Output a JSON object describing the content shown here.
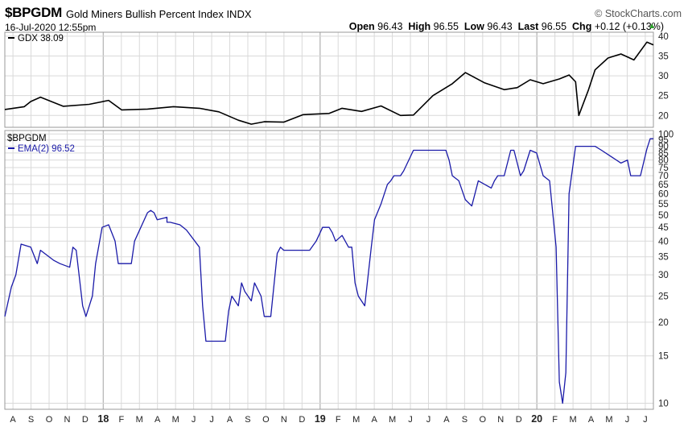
{
  "header": {
    "symbol": "$BPGDM",
    "name": "Gold Miners Bullish Percent Index",
    "exchange": "INDX",
    "brand": "© StockCharts.com",
    "date": "16-Jul-2020 12:55pm",
    "open_label": "Open",
    "open": "96.43",
    "high_label": "High",
    "high": "96.55",
    "low_label": "Low",
    "low": "96.43",
    "last_label": "Last",
    "last": "96.55",
    "chg_label": "Chg",
    "chg": "+0.12 (+0.13%)",
    "chg_arrow": "▲"
  },
  "colors": {
    "gdx_line": "#000000",
    "bpgdm_line": "#1a1aa8",
    "grid": "#d9d9d9",
    "axis": "#999999",
    "up": "#2aa02a"
  },
  "chart_data": [
    {
      "type": "line",
      "panel": "top",
      "legend": "GDX 38.09",
      "y_ticks": [
        20,
        25,
        30,
        35,
        40
      ],
      "ylim": [
        17,
        41
      ],
      "scale": "linear",
      "series": [
        {
          "name": "GDX",
          "x": [
            0,
            0.03,
            0.04,
            0.055,
            0.09,
            0.13,
            0.16,
            0.18,
            0.22,
            0.26,
            0.3,
            0.33,
            0.36,
            0.38,
            0.4,
            0.43,
            0.46,
            0.5,
            0.52,
            0.55,
            0.58,
            0.61,
            0.63,
            0.66,
            0.69,
            0.71,
            0.74,
            0.77,
            0.79,
            0.81,
            0.83,
            0.855,
            0.87,
            0.88,
            0.885,
            0.9,
            0.91,
            0.93,
            0.95,
            0.97,
            0.99,
            1.0
          ],
          "values": [
            21.5,
            22.2,
            23.5,
            24.6,
            22.3,
            22.8,
            23.8,
            21.4,
            21.6,
            22.2,
            21.8,
            20.9,
            18.8,
            17.8,
            18.4,
            18.3,
            20.2,
            20.5,
            21.8,
            21.0,
            22.4,
            20.0,
            20.1,
            25.0,
            28.0,
            30.8,
            28.2,
            26.5,
            27.0,
            29.0,
            28.0,
            29.2,
            30.2,
            28.5,
            20.0,
            26.5,
            31.5,
            34.5,
            35.5,
            34.0,
            38.5,
            37.8
          ]
        }
      ]
    },
    {
      "type": "line",
      "panel": "bottom",
      "title": "$BPGDM",
      "legend": "EMA(2) 96.52",
      "scale": "log",
      "y_ticks": [
        10,
        15,
        20,
        25,
        30,
        35,
        40,
        45,
        50,
        55,
        60,
        65,
        70,
        75,
        80,
        85,
        90,
        95,
        100
      ],
      "ylim": [
        9.5,
        103
      ],
      "x_labels": [
        "A",
        "S",
        "O",
        "N",
        "D",
        "18",
        "F",
        "M",
        "A",
        "M",
        "J",
        "J",
        "A",
        "S",
        "O",
        "N",
        "D",
        "19",
        "F",
        "M",
        "A",
        "M",
        "J",
        "J",
        "A",
        "S",
        "O",
        "N",
        "D",
        "20",
        "F",
        "M",
        "A",
        "M",
        "J",
        "J"
      ],
      "series": [
        {
          "name": "EMA(2)",
          "x": [
            0,
            0.01,
            0.017,
            0.025,
            0.04,
            0.05,
            0.055,
            0.075,
            0.085,
            0.1,
            0.105,
            0.11,
            0.12,
            0.125,
            0.135,
            0.14,
            0.15,
            0.16,
            0.17,
            0.175,
            0.185,
            0.195,
            0.2,
            0.22,
            0.225,
            0.23,
            0.235,
            0.25,
            0.25,
            0.255,
            0.27,
            0.28,
            0.3,
            0.305,
            0.31,
            0.315,
            0.32,
            0.33,
            0.34,
            0.345,
            0.35,
            0.36,
            0.365,
            0.37,
            0.38,
            0.385,
            0.395,
            0.4,
            0.41,
            0.42,
            0.425,
            0.43,
            0.44,
            0.445,
            0.455,
            0.46,
            0.47,
            0.48,
            0.49,
            0.5,
            0.505,
            0.51,
            0.52,
            0.53,
            0.535,
            0.54,
            0.545,
            0.555,
            0.565,
            0.57,
            0.58,
            0.59,
            0.595,
            0.6,
            0.61,
            0.615,
            0.63,
            0.635,
            0.65,
            0.67,
            0.68,
            0.685,
            0.69,
            0.7,
            0.71,
            0.72,
            0.73,
            0.75,
            0.755,
            0.76,
            0.765,
            0.77,
            0.78,
            0.785,
            0.795,
            0.8,
            0.81,
            0.82,
            0.83,
            0.84,
            0.85,
            0.855,
            0.86,
            0.865,
            0.87,
            0.88,
            0.89,
            0.895,
            0.9,
            0.905,
            0.91,
            0.92,
            0.95,
            0.96,
            0.965,
            0.97,
            0.98,
            0.99,
            0.995,
            1.0
          ],
          "values": [
            21,
            27,
            30,
            39,
            38,
            33,
            37,
            34,
            33,
            32,
            38,
            37,
            23,
            21,
            25,
            33,
            45,
            46,
            40,
            33,
            33,
            33,
            40,
            51,
            52,
            51,
            48,
            49,
            47,
            47,
            46,
            44,
            38,
            23,
            17,
            17,
            17,
            17,
            17,
            22,
            25,
            23,
            28,
            26,
            24,
            28,
            25,
            21,
            21,
            36,
            38,
            37,
            37,
            37,
            37,
            37,
            37,
            40,
            45,
            45,
            43,
            40,
            42,
            38,
            38,
            28,
            25,
            23,
            38,
            48,
            55,
            65,
            67,
            70,
            70,
            73,
            87,
            87,
            87,
            87,
            87,
            80,
            70,
            67,
            57,
            54,
            67,
            63,
            67,
            70,
            70,
            70,
            87,
            87,
            70,
            73,
            87,
            85,
            70,
            67,
            38,
            12,
            10,
            13,
            60,
            90,
            90,
            90,
            90,
            90,
            90,
            87,
            78,
            80,
            70,
            70,
            70,
            88,
            96,
            96
          ]
        }
      ]
    }
  ]
}
